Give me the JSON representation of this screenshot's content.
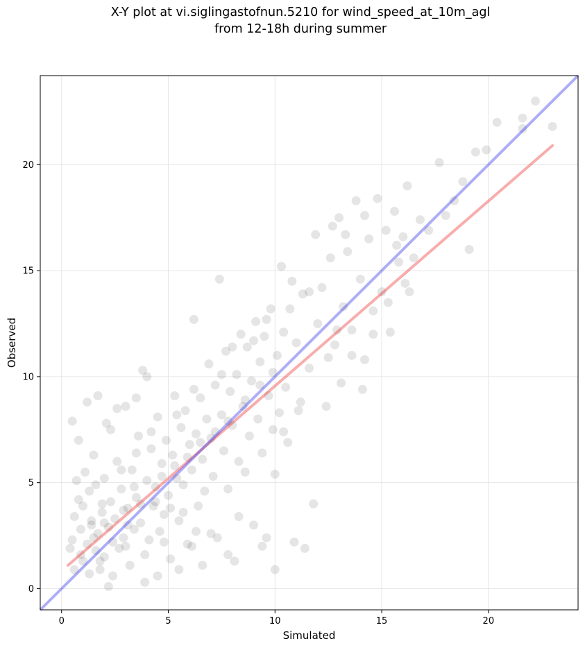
{
  "chart_data": {
    "type": "scatter",
    "title_line1": "X-Y plot at vi.siglingastofnun.5210 for wind_speed_at_10m_agl",
    "title_line2": "from 12-18h during summer",
    "xlabel": "Simulated",
    "ylabel": "Observed",
    "xlim": [
      -1.0,
      24.2
    ],
    "ylim": [
      -1.0,
      24.2
    ],
    "xticks": [
      0,
      5,
      10,
      15,
      20
    ],
    "yticks": [
      0,
      5,
      10,
      15,
      20
    ],
    "grid": true,
    "colors": {
      "points": "#000000",
      "identity_line": "#3333ee",
      "fit_line": "#ee3333"
    },
    "identity_line": {
      "x": [
        -1.0,
        24.2
      ],
      "y": [
        -1.0,
        24.2
      ]
    },
    "fit_line": {
      "x": [
        0.3,
        23.0
      ],
      "y": [
        1.1,
        20.9
      ]
    },
    "points": [
      [
        0.4,
        1.9
      ],
      [
        0.5,
        2.3
      ],
      [
        0.6,
        0.9
      ],
      [
        0.6,
        3.4
      ],
      [
        0.7,
        5.1
      ],
      [
        0.8,
        4.2
      ],
      [
        0.9,
        2.8
      ],
      [
        1.0,
        1.3
      ],
      [
        1.0,
        3.9
      ],
      [
        1.1,
        5.5
      ],
      [
        1.2,
        2.1
      ],
      [
        1.3,
        0.7
      ],
      [
        1.3,
        4.6
      ],
      [
        1.4,
        3.0
      ],
      [
        1.5,
        6.3
      ],
      [
        1.6,
        1.8
      ],
      [
        1.6,
        4.9
      ],
      [
        1.7,
        2.6
      ],
      [
        1.8,
        0.9
      ],
      [
        1.9,
        3.6
      ],
      [
        2.0,
        5.2
      ],
      [
        2.0,
        1.5
      ],
      [
        2.1,
        7.8
      ],
      [
        2.2,
        2.9
      ],
      [
        2.3,
        4.1
      ],
      [
        2.4,
        0.6
      ],
      [
        2.5,
        3.3
      ],
      [
        2.6,
        6.0
      ],
      [
        2.7,
        1.9
      ],
      [
        2.8,
        4.7
      ],
      [
        2.9,
        2.4
      ],
      [
        3.0,
        8.6
      ],
      [
        3.1,
        3.8
      ],
      [
        3.2,
        1.1
      ],
      [
        3.3,
        5.6
      ],
      [
        3.4,
        2.8
      ],
      [
        3.5,
        4.3
      ],
      [
        3.6,
        7.2
      ],
      [
        3.7,
        3.1
      ],
      [
        3.8,
        10.3
      ],
      [
        3.9,
        1.6
      ],
      [
        4.0,
        5.1
      ],
      [
        4.1,
        2.3
      ],
      [
        4.2,
        6.6
      ],
      [
        4.3,
        3.9
      ],
      [
        4.4,
        4.8
      ],
      [
        4.5,
        8.1
      ],
      [
        4.6,
        2.7
      ],
      [
        4.7,
        5.9
      ],
      [
        4.8,
        3.5
      ],
      [
        4.9,
        7.0
      ],
      [
        5.0,
        4.4
      ],
      [
        5.1,
        1.4
      ],
      [
        5.2,
        6.3
      ],
      [
        5.3,
        9.1
      ],
      [
        5.4,
        5.2
      ],
      [
        5.5,
        3.2
      ],
      [
        5.6,
        7.6
      ],
      [
        5.7,
        4.9
      ],
      [
        5.8,
        8.4
      ],
      [
        5.9,
        2.1
      ],
      [
        6.0,
        6.8
      ],
      [
        6.1,
        5.6
      ],
      [
        6.2,
        12.7
      ],
      [
        6.3,
        7.3
      ],
      [
        6.4,
        3.9
      ],
      [
        6.5,
        9.0
      ],
      [
        6.6,
        6.1
      ],
      [
        6.7,
        4.6
      ],
      [
        6.8,
        8.0
      ],
      [
        6.9,
        10.6
      ],
      [
        7.0,
        7.1
      ],
      [
        7.1,
        5.3
      ],
      [
        7.2,
        9.6
      ],
      [
        7.3,
        2.4
      ],
      [
        7.4,
        14.6
      ],
      [
        7.5,
        8.2
      ],
      [
        7.6,
        6.5
      ],
      [
        7.7,
        11.2
      ],
      [
        7.8,
        4.7
      ],
      [
        7.9,
        9.3
      ],
      [
        8.0,
        7.7
      ],
      [
        8.1,
        1.3
      ],
      [
        8.2,
        10.1
      ],
      [
        8.3,
        6.0
      ],
      [
        8.4,
        12.0
      ],
      [
        8.5,
        8.6
      ],
      [
        8.6,
        5.5
      ],
      [
        8.7,
        11.4
      ],
      [
        8.8,
        7.2
      ],
      [
        8.9,
        9.8
      ],
      [
        9.0,
        3.0
      ],
      [
        9.1,
        12.6
      ],
      [
        9.2,
        8.0
      ],
      [
        9.3,
        10.7
      ],
      [
        9.4,
        6.4
      ],
      [
        9.5,
        11.9
      ],
      [
        9.6,
        2.4
      ],
      [
        9.7,
        9.1
      ],
      [
        9.8,
        13.2
      ],
      [
        9.9,
        7.5
      ],
      [
        10.0,
        0.9
      ],
      [
        10.1,
        11.0
      ],
      [
        10.2,
        8.3
      ],
      [
        10.3,
        15.2
      ],
      [
        10.4,
        12.1
      ],
      [
        10.5,
        9.5
      ],
      [
        10.6,
        6.9
      ],
      [
        10.8,
        14.5
      ],
      [
        10.9,
        2.2
      ],
      [
        11.0,
        11.6
      ],
      [
        11.2,
        8.8
      ],
      [
        11.3,
        13.9
      ],
      [
        11.4,
        1.9
      ],
      [
        11.6,
        10.4
      ],
      [
        11.8,
        4.0
      ],
      [
        11.9,
        16.7
      ],
      [
        12.0,
        12.5
      ],
      [
        12.2,
        14.2
      ],
      [
        12.4,
        8.6
      ],
      [
        12.6,
        15.6
      ],
      [
        12.8,
        11.5
      ],
      [
        13.0,
        17.5
      ],
      [
        13.1,
        9.7
      ],
      [
        13.2,
        13.3
      ],
      [
        13.4,
        15.9
      ],
      [
        13.6,
        12.2
      ],
      [
        13.8,
        18.3
      ],
      [
        14.0,
        14.6
      ],
      [
        14.2,
        10.8
      ],
      [
        14.4,
        16.5
      ],
      [
        14.6,
        13.1
      ],
      [
        14.8,
        18.4
      ],
      [
        15.0,
        14.0
      ],
      [
        15.2,
        16.9
      ],
      [
        15.4,
        12.1
      ],
      [
        15.6,
        17.8
      ],
      [
        15.8,
        15.4
      ],
      [
        16.0,
        16.6
      ],
      [
        16.2,
        19.0
      ],
      [
        16.3,
        14.0
      ],
      [
        16.8,
        17.4
      ],
      [
        17.2,
        16.9
      ],
      [
        17.7,
        20.1
      ],
      [
        18.0,
        17.6
      ],
      [
        18.4,
        18.3
      ],
      [
        18.8,
        19.2
      ],
      [
        19.1,
        16.0
      ],
      [
        19.4,
        20.6
      ],
      [
        19.9,
        20.7
      ],
      [
        20.4,
        22.0
      ],
      [
        21.6,
        21.7
      ],
      [
        21.6,
        22.2
      ],
      [
        22.2,
        23.0
      ],
      [
        23.0,
        21.8
      ],
      [
        1.2,
        8.8
      ],
      [
        1.7,
        9.1
      ],
      [
        2.3,
        7.5
      ],
      [
        2.6,
        8.5
      ],
      [
        3.5,
        9.0
      ],
      [
        4.0,
        10.0
      ],
      [
        0.5,
        7.9
      ],
      [
        0.8,
        7.0
      ],
      [
        5.7,
        3.6
      ],
      [
        6.1,
        2.0
      ],
      [
        7.0,
        2.6
      ],
      [
        7.8,
        1.6
      ],
      [
        8.3,
        3.4
      ],
      [
        9.4,
        2.0
      ],
      [
        10.0,
        5.4
      ],
      [
        10.4,
        7.4
      ],
      [
        11.1,
        8.4
      ],
      [
        12.5,
        10.9
      ],
      [
        12.9,
        12.2
      ],
      [
        13.6,
        11.0
      ],
      [
        14.1,
        9.4
      ],
      [
        14.6,
        12.0
      ],
      [
        15.3,
        13.5
      ],
      [
        16.1,
        14.4
      ],
      [
        16.5,
        15.6
      ],
      [
        13.3,
        16.7
      ],
      [
        12.7,
        17.1
      ],
      [
        14.2,
        17.6
      ],
      [
        15.7,
        16.2
      ],
      [
        11.6,
        14.0
      ],
      [
        4.5,
        0.6
      ],
      [
        3.9,
        0.3
      ],
      [
        2.2,
        0.1
      ],
      [
        5.5,
        0.9
      ],
      [
        6.6,
        1.1
      ],
      [
        1.8,
        1.3
      ],
      [
        3.0,
        2.0
      ],
      [
        4.8,
        2.2
      ],
      [
        6.3,
        2.7
      ],
      [
        5.1,
        3.8
      ],
      [
        2.8,
        5.6
      ],
      [
        3.5,
        6.4
      ],
      [
        4.2,
        7.4
      ],
      [
        5.4,
        8.2
      ],
      [
        6.2,
        9.4
      ],
      [
        7.5,
        10.1
      ],
      [
        8.0,
        11.4
      ],
      [
        9.0,
        11.7
      ],
      [
        9.6,
        12.7
      ],
      [
        10.7,
        13.2
      ],
      [
        1.4,
        3.2
      ],
      [
        1.9,
        4.0
      ],
      [
        2.4,
        2.2
      ],
      [
        3.1,
        3.0
      ],
      [
        3.7,
        4.0
      ],
      [
        4.4,
        4.1
      ],
      [
        4.7,
        5.3
      ],
      [
        5.3,
        5.8
      ],
      [
        5.9,
        6.2
      ],
      [
        6.5,
        6.9
      ],
      [
        7.2,
        7.4
      ],
      [
        7.8,
        7.9
      ],
      [
        8.6,
        8.9
      ],
      [
        9.3,
        9.6
      ],
      [
        9.9,
        10.2
      ],
      [
        0.9,
        1.6
      ],
      [
        1.5,
        2.4
      ],
      [
        2.0,
        3.1
      ],
      [
        2.9,
        3.7
      ],
      [
        3.4,
        4.8
      ]
    ]
  }
}
